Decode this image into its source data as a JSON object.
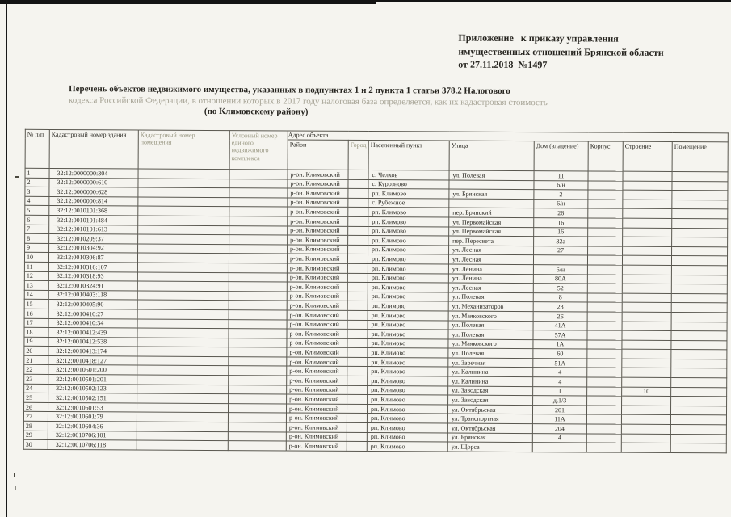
{
  "colors": {
    "paper": "#f5f4ef",
    "ink": "#26241f",
    "table_border": "#59574f",
    "faded_text": "#a6a395",
    "scan_edge": "#141414"
  },
  "header_block": {
    "line1": "Приложение   к приказу управления",
    "line2": "имущественных отношений Брянской области",
    "line3": "от 27.11.2018  №1497"
  },
  "title": {
    "line1": "Перечень объектов недвижимого имущества, указанных в подпунктах 1 и 2 пункта 1 статьи 378.2 Налогового",
    "line2": "кодекса Российской Федерации, в отношении которых в 2017 году налоговая база определяется, как их кадастровая стоимость",
    "line3": "(по Климовскому району)"
  },
  "table": {
    "address_group_label": "Адрес объекта",
    "left_headers": [
      "№ п/п",
      "Кадастровый номер здания",
      "Кадастровый номер помещения",
      "Условный номер единого недвижимого комплекса"
    ],
    "address_headers": [
      "Район",
      "Город",
      "Населенный пункт",
      "Улица",
      "Дом (владение)",
      "Корпус",
      "Строение",
      "Помещение"
    ],
    "rows": [
      [
        "1",
        "32:12:0000000:304",
        "",
        "",
        "р-он. Климовский",
        "",
        "с. Челхов",
        "ул. Полевая",
        "11",
        "",
        "",
        ""
      ],
      [
        "2",
        "32:12:0000000:610",
        "",
        "",
        "р-он. Климовский",
        "",
        "с. Курозново",
        "",
        "6/н",
        "",
        "",
        ""
      ],
      [
        "3",
        "32:12:0000000:628",
        "",
        "",
        "р-он. Климовский",
        "",
        "рп. Климово",
        "ул. Брянская",
        "2",
        "",
        "",
        ""
      ],
      [
        "4",
        "32:12:0000000:814",
        "",
        "",
        "р-он. Климовский",
        "",
        "с. Рубежное",
        "",
        "6/н",
        "",
        "",
        ""
      ],
      [
        "5",
        "32:12:0010101:368",
        "",
        "",
        "р-он. Климовский",
        "",
        "рп. Климово",
        "пер. Брянский",
        "26",
        "",
        "",
        ""
      ],
      [
        "6",
        "32:12:0010101:484",
        "",
        "",
        "р-он. Климовский",
        "",
        "рп. Климово",
        "ул. Первомайская",
        "16",
        "",
        "",
        ""
      ],
      [
        "7",
        "32:12:0010101:613",
        "",
        "",
        "р-он. Климовский",
        "",
        "рп. Климово",
        "ул. Первомайская",
        "16",
        "",
        "",
        ""
      ],
      [
        "8",
        "32:12:0010209:37",
        "",
        "",
        "р-он. Климовский",
        "",
        "рп. Климово",
        "пер. Пересвета",
        "32а",
        "",
        "",
        ""
      ],
      [
        "9",
        "32:12:0010304:92",
        "",
        "",
        "р-он. Климовский",
        "",
        "рп. Климово",
        "ул. Лесная",
        "27",
        "",
        "",
        ""
      ],
      [
        "10",
        "32:12:0010306:87",
        "",
        "",
        "р-он. Климовский",
        "",
        "рп. Климово",
        "ул. Лесная",
        "",
        "",
        "",
        ""
      ],
      [
        "11",
        "32:12:0010316:107",
        "",
        "",
        "р-он. Климовский",
        "",
        "рп. Климово",
        "ул. Ленина",
        "6/н",
        "",
        "",
        ""
      ],
      [
        "12",
        "32:12:0010318:93",
        "",
        "",
        "р-он. Климовский",
        "",
        "рп. Климово",
        "ул. Ленина",
        "80А",
        "",
        "",
        ""
      ],
      [
        "13",
        "32:12:0010324:91",
        "",
        "",
        "р-он. Климовский",
        "",
        "рп. Климово",
        "ул. Лесная",
        "52",
        "",
        "",
        ""
      ],
      [
        "14",
        "32:12:0010403:118",
        "",
        "",
        "р-он. Климовский",
        "",
        "рп. Климово",
        "ул. Полевая",
        "8",
        "",
        "",
        ""
      ],
      [
        "15",
        "32:12:0010405:90",
        "",
        "",
        "р-он. Климовский",
        "",
        "рп. Климово",
        "ул. Механизаторов",
        "23",
        "",
        "",
        ""
      ],
      [
        "16",
        "32:12:0010410:27",
        "",
        "",
        "р-он. Климовский",
        "",
        "рп. Климово",
        "ул. Маяковского",
        "2Б",
        "",
        "",
        ""
      ],
      [
        "17",
        "32:12:0010410:34",
        "",
        "",
        "р-он. Климовский",
        "",
        "рп. Климово",
        "ул. Полевая",
        "41А",
        "",
        "",
        ""
      ],
      [
        "18",
        "32:12:0010412:439",
        "",
        "",
        "р-он. Климовский",
        "",
        "рп. Климово",
        "ул. Полевая",
        "57А",
        "",
        "",
        ""
      ],
      [
        "19",
        "32:12:0010412:538",
        "",
        "",
        "р-он. Климовский",
        "",
        "рп. Климово",
        "ул. Маяковского",
        "1А",
        "",
        "",
        ""
      ],
      [
        "20",
        "32:12:0010413:174",
        "",
        "",
        "р-он. Климовский",
        "",
        "рп. Климово",
        "ул. Полевая",
        "60",
        "",
        "",
        ""
      ],
      [
        "21",
        "32:12:0010418:127",
        "",
        "",
        "р-он. Климовский",
        "",
        "рп. Климово",
        "ул. Заречная",
        "51А",
        "",
        "",
        ""
      ],
      [
        "22",
        "32:12:0010501:200",
        "",
        "",
        "р-он. Климовский",
        "",
        "рп. Климово",
        "ул. Калинина",
        "4",
        "",
        "",
        ""
      ],
      [
        "23",
        "32:12:0010501:201",
        "",
        "",
        "р-он. Климовский",
        "",
        "рп. Климово",
        "ул. Калинина",
        "4",
        "",
        "",
        ""
      ],
      [
        "24",
        "32:12:0010502:123",
        "",
        "",
        "р-он. Климовский",
        "",
        "рп. Климово",
        "ул. Заводская",
        "1",
        "",
        "10",
        ""
      ],
      [
        "25",
        "32:12:0010502:151",
        "",
        "",
        "р-он. Климовский",
        "",
        "рп. Климово",
        "ул. Заводская",
        "д.1/3",
        "",
        "",
        ""
      ],
      [
        "26",
        "32:12:0010601:53",
        "",
        "",
        "р-он. Климовский",
        "",
        "рп. Климово",
        "ул. Октябрьская",
        "201",
        "",
        "",
        ""
      ],
      [
        "27",
        "32:12:0010601:79",
        "",
        "",
        "р-он. Климовский",
        "",
        "рп. Климово",
        "ул. Транспортная",
        "11А",
        "",
        "",
        ""
      ],
      [
        "28",
        "32:12:0010604:36",
        "",
        "",
        "р-он. Климовский",
        "",
        "рп. Климово",
        "ул. Октябрьская",
        "204",
        "",
        "",
        ""
      ],
      [
        "29",
        "32:12:0010706:101",
        "",
        "",
        "р-он. Климовский",
        "",
        "рп. Климово",
        "ул. Брянская",
        "4",
        "",
        "",
        ""
      ],
      [
        "30",
        "32:12:0010706:118",
        "",
        "",
        "р-он. Климовский",
        "",
        "рп. Климово",
        "ул. Щорса",
        "",
        "",
        "",
        ""
      ]
    ]
  }
}
